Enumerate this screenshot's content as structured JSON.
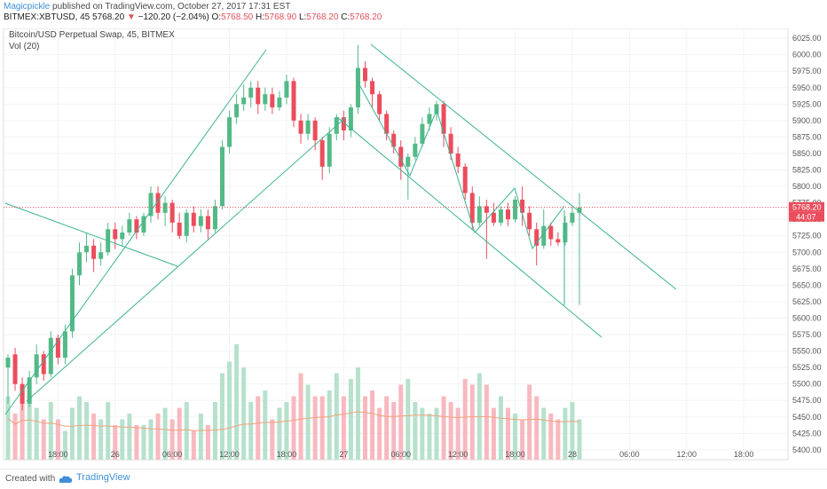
{
  "header": {
    "author": "Magicpickle",
    "published": " published on TradingView.com, October 27, 2017 17:31 EST",
    "symbol": "BITMEX:XBTUSD, 45",
    "price": "5768.20",
    "change": "−120.20 (−2.04%)",
    "o_label": "O:",
    "o_val": "5768.50",
    "h_label": "H:",
    "h_val": "5768.90",
    "l_label": "L:",
    "l_val": "5768.20",
    "c_label": "C:",
    "c_val": "5768.20"
  },
  "legend": {
    "title": "Bitcoin/USD Perpetual Swap, 45, BITMEX",
    "vol": "Vol (20)"
  },
  "price_badge": "5768.20",
  "timer_badge": "44:07",
  "footer": {
    "created": "Created with",
    "brand": "TradingView"
  },
  "colors": {
    "up": "#53b987",
    "down": "#eb4d5c",
    "vol_up": "#b6e1cc",
    "vol_down": "#f7b9bf",
    "line": "#3db38f",
    "ma": "#f0a27a"
  },
  "chart_data": {
    "type": "candlestick",
    "title": "Bitcoin/USD Perpetual Swap, 45, BITMEX",
    "y_ticks": [
      5400,
      5425,
      5450,
      5475,
      5500,
      5525,
      5550,
      5575,
      5600,
      5625,
      5650,
      5675,
      5700,
      5725,
      5750,
      5775,
      5800,
      5825,
      5850,
      5875,
      5900,
      5925,
      5950,
      5975,
      6000,
      6025
    ],
    "ylim": [
      5385,
      6040
    ],
    "x_ticks": [
      {
        "label": "18:00",
        "idx": 7
      },
      {
        "label": "26",
        "idx": 15
      },
      {
        "label": "06:00",
        "idx": 23
      },
      {
        "label": "12:00",
        "idx": 31
      },
      {
        "label": "18:00",
        "idx": 39
      },
      {
        "label": "27",
        "idx": 47
      },
      {
        "label": "06:00",
        "idx": 55
      },
      {
        "label": "12:00",
        "idx": 63
      },
      {
        "label": "18:00",
        "idx": 71
      },
      {
        "label": "28",
        "idx": 79
      },
      {
        "label": "06:00",
        "idx": 87
      },
      {
        "label": "12:00",
        "idx": 95
      },
      {
        "label": "18:00",
        "idx": 103
      }
    ],
    "candles": [
      [
        5525,
        5540,
        5470,
        5545
      ],
      [
        5545,
        5500,
        5490,
        5555
      ],
      [
        5500,
        5470,
        5460,
        5510
      ],
      [
        5470,
        5510,
        5465,
        5520
      ],
      [
        5510,
        5545,
        5500,
        5560
      ],
      [
        5545,
        5515,
        5505,
        5550
      ],
      [
        5515,
        5570,
        5510,
        5580
      ],
      [
        5570,
        5540,
        5530,
        5575
      ],
      [
        5540,
        5580,
        5530,
        5590
      ],
      [
        5580,
        5665,
        5570,
        5675
      ],
      [
        5665,
        5700,
        5650,
        5715
      ],
      [
        5700,
        5710,
        5685,
        5730
      ],
      [
        5710,
        5690,
        5670,
        5720
      ],
      [
        5690,
        5700,
        5680,
        5715
      ],
      [
        5700,
        5735,
        5695,
        5745
      ],
      [
        5735,
        5720,
        5705,
        5745
      ],
      [
        5720,
        5730,
        5710,
        5740
      ],
      [
        5730,
        5750,
        5725,
        5760
      ],
      [
        5750,
        5730,
        5720,
        5755
      ],
      [
        5730,
        5755,
        5725,
        5760
      ],
      [
        5755,
        5790,
        5745,
        5800
      ],
      [
        5790,
        5760,
        5750,
        5800
      ],
      [
        5760,
        5775,
        5740,
        5785
      ],
      [
        5775,
        5745,
        5730,
        5780
      ],
      [
        5745,
        5725,
        5720,
        5760
      ],
      [
        5725,
        5760,
        5715,
        5765
      ],
      [
        5760,
        5740,
        5730,
        5770
      ],
      [
        5740,
        5755,
        5730,
        5765
      ],
      [
        5755,
        5735,
        5720,
        5765
      ],
      [
        5735,
        5770,
        5730,
        5780
      ],
      [
        5770,
        5860,
        5765,
        5870
      ],
      [
        5860,
        5905,
        5850,
        5915
      ],
      [
        5905,
        5925,
        5895,
        5940
      ],
      [
        5925,
        5935,
        5915,
        5955
      ],
      [
        5935,
        5950,
        5920,
        5960
      ],
      [
        5950,
        5925,
        5910,
        5960
      ],
      [
        5925,
        5940,
        5915,
        5950
      ],
      [
        5940,
        5920,
        5910,
        5950
      ],
      [
        5920,
        5935,
        5915,
        5945
      ],
      [
        5935,
        5960,
        5925,
        5970
      ],
      [
        5960,
        5900,
        5890,
        5965
      ],
      [
        5900,
        5880,
        5865,
        5910
      ],
      [
        5880,
        5900,
        5870,
        5910
      ],
      [
        5900,
        5870,
        5855,
        5905
      ],
      [
        5870,
        5830,
        5810,
        5875
      ],
      [
        5830,
        5880,
        5820,
        5890
      ],
      [
        5880,
        5905,
        5870,
        5910
      ],
      [
        5905,
        5885,
        5870,
        5915
      ],
      [
        5885,
        5920,
        5875,
        5925
      ],
      [
        5920,
        5980,
        5910,
        6015
      ],
      [
        5980,
        5960,
        5950,
        5990
      ],
      [
        5960,
        5940,
        5920,
        5965
      ],
      [
        5940,
        5910,
        5900,
        5945
      ],
      [
        5910,
        5880,
        5870,
        5915
      ],
      [
        5880,
        5860,
        5850,
        5885
      ],
      [
        5860,
        5830,
        5810,
        5870
      ],
      [
        5830,
        5845,
        5780,
        5850
      ],
      [
        5845,
        5865,
        5840,
        5875
      ],
      [
        5865,
        5895,
        5860,
        5905
      ],
      [
        5895,
        5910,
        5885,
        5920
      ],
      [
        5910,
        5925,
        5900,
        5930
      ],
      [
        5925,
        5880,
        5860,
        5930
      ],
      [
        5880,
        5850,
        5840,
        5890
      ],
      [
        5850,
        5830,
        5820,
        5860
      ],
      [
        5830,
        5790,
        5780,
        5835
      ],
      [
        5790,
        5745,
        5735,
        5800
      ],
      [
        5745,
        5770,
        5740,
        5785
      ],
      [
        5770,
        5760,
        5690,
        5780
      ],
      [
        5760,
        5745,
        5740,
        5775
      ],
      [
        5745,
        5765,
        5740,
        5770
      ],
      [
        5765,
        5750,
        5740,
        5775
      ],
      [
        5750,
        5780,
        5745,
        5785
      ],
      [
        5780,
        5760,
        5740,
        5800
      ],
      [
        5760,
        5735,
        5725,
        5770
      ],
      [
        5735,
        5710,
        5680,
        5745
      ],
      [
        5710,
        5740,
        5705,
        5765
      ],
      [
        5740,
        5720,
        5710,
        5745
      ],
      [
        5720,
        5715,
        5710,
        5730
      ],
      [
        5715,
        5745,
        5710,
        5755
      ],
      [
        5745,
        5760,
        5740,
        5770
      ],
      [
        5760,
        5768,
        5620,
        5790
      ]
    ],
    "volume": [
      0.55,
      0.4,
      0.62,
      0.55,
      0.45,
      0.35,
      0.5,
      0.35,
      0.25,
      0.45,
      0.55,
      0.5,
      0.4,
      0.35,
      0.5,
      0.3,
      0.35,
      0.4,
      0.3,
      0.3,
      0.35,
      0.4,
      0.45,
      0.35,
      0.45,
      0.5,
      0.25,
      0.4,
      0.3,
      0.5,
      0.75,
      0.85,
      1.0,
      0.8,
      0.5,
      0.55,
      0.6,
      0.35,
      0.45,
      0.5,
      0.55,
      0.75,
      0.65,
      0.55,
      0.55,
      0.6,
      0.75,
      0.55,
      0.7,
      0.8,
      0.55,
      0.6,
      0.45,
      0.55,
      0.5,
      0.65,
      0.7,
      0.5,
      0.45,
      0.4,
      0.45,
      0.55,
      0.5,
      0.45,
      0.7,
      0.65,
      0.75,
      0.65,
      0.45,
      0.55,
      0.45,
      0.4,
      0.35,
      0.65,
      0.55,
      0.45,
      0.4,
      0.35,
      0.45,
      0.5,
      0.35
    ]
  }
}
